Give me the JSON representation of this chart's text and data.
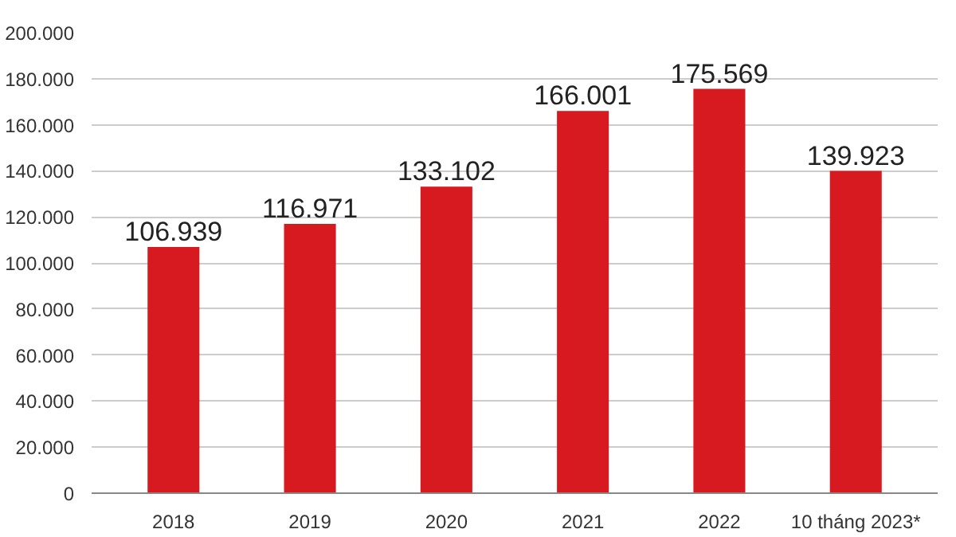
{
  "chart_data": {
    "type": "bar",
    "categories": [
      "2018",
      "2019",
      "2020",
      "2021",
      "2022",
      "10 tháng 2023*"
    ],
    "values": [
      106939,
      116971,
      133102,
      166001,
      175569,
      139923
    ],
    "value_labels": [
      "106.939",
      "116.971",
      "133.102",
      "166.001",
      "175.569",
      "139.923"
    ],
    "color": "#d71920",
    "ylim": [
      0,
      200000
    ],
    "yticks": [
      {
        "value": 0,
        "label": "0"
      },
      {
        "value": 20000,
        "label": "20.000"
      },
      {
        "value": 40000,
        "label": "40.000"
      },
      {
        "value": 60000,
        "label": "60.000"
      },
      {
        "value": 80000,
        "label": "80.000"
      },
      {
        "value": 100000,
        "label": "100.000"
      },
      {
        "value": 120000,
        "label": "120.000"
      },
      {
        "value": 140000,
        "label": "140.000"
      },
      {
        "value": 160000,
        "label": "160.000"
      },
      {
        "value": 180000,
        "label": "180.000"
      },
      {
        "value": 200000,
        "label": "200.000"
      }
    ],
    "grid": "y"
  }
}
